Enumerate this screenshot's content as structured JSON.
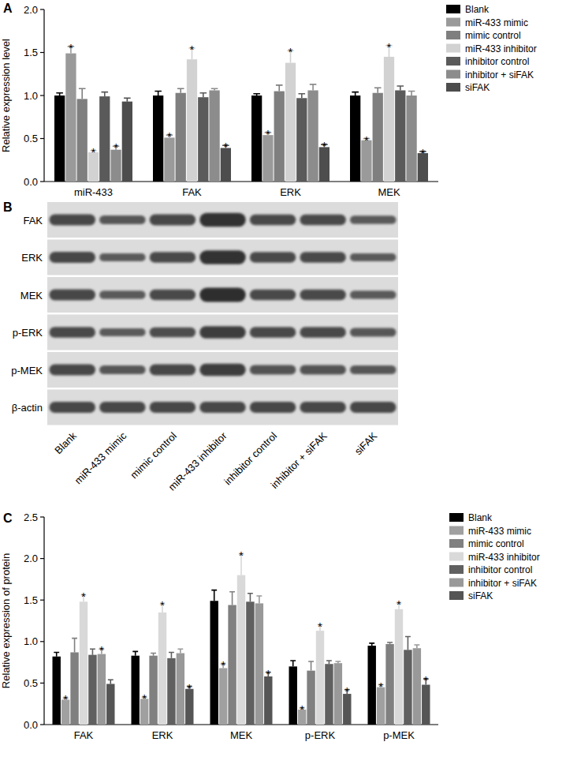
{
  "panel_labels": [
    "A",
    "B",
    "C"
  ],
  "chart_data": [
    {
      "type": "bar",
      "y_label": "Relative expression level",
      "categories": [
        "miR-433",
        "FAK",
        "ERK",
        "MEK"
      ],
      "ylim": [
        0,
        2
      ],
      "yticks": [
        {
          "value": 0,
          "label": "0.0"
        },
        {
          "value": 0.5,
          "label": "0.5"
        },
        {
          "value": 1,
          "label": "1.0"
        },
        {
          "value": 1.5,
          "label": "1.5"
        },
        {
          "value": 2,
          "label": "2.0"
        }
      ],
      "grid": false,
      "legend": "right",
      "series": [
        {
          "name": "Blank",
          "color": "#000000",
          "values": [
            1.0,
            1.0,
            1.0,
            1.0
          ],
          "errors": [
            0.03,
            0.05,
            0.02,
            0.04
          ],
          "significance": [
            null,
            null,
            null,
            null
          ]
        },
        {
          "name": "miR-433 mimic",
          "color": "#9a9a9a",
          "values": [
            1.49,
            0.51,
            0.54,
            0.48
          ],
          "errors": [
            0.08,
            0.03,
            0.03,
            0.02
          ],
          "significance": [
            "*",
            "*",
            "*",
            "*"
          ]
        },
        {
          "name": "mimic control",
          "color": "#7f7f7f",
          "values": [
            0.96,
            1.03,
            1.05,
            1.03
          ],
          "errors": [
            0.12,
            0.05,
            0.07,
            0.06
          ],
          "significance": [
            null,
            null,
            null,
            null
          ]
        },
        {
          "name": "miR-433 inhibitor",
          "color": "#d2d2d2",
          "values": [
            0.34,
            1.42,
            1.38,
            1.45
          ],
          "errors": [
            0.02,
            0.13,
            0.14,
            0.13
          ],
          "significance": [
            "*",
            "*",
            "*",
            "*"
          ]
        },
        {
          "name": "inhibitor control",
          "color": "#5a5a5a",
          "values": [
            0.99,
            0.98,
            0.97,
            1.06
          ],
          "errors": [
            0.05,
            0.05,
            0.05,
            0.05
          ],
          "significance": [
            null,
            null,
            null,
            null
          ]
        },
        {
          "name": "inhibitor + siFAK",
          "color": "#8c8c8c",
          "values": [
            0.37,
            1.06,
            1.06,
            1.0
          ],
          "errors": [
            0.04,
            0.02,
            0.07,
            0.05
          ],
          "significance": [
            "*",
            null,
            null,
            null
          ]
        },
        {
          "name": "siFAK",
          "color": "#4d4d4d",
          "values": [
            0.93,
            0.39,
            0.4,
            0.33
          ],
          "errors": [
            0.04,
            0.03,
            0.03,
            0.02
          ],
          "significance": [
            null,
            "*",
            "*",
            "*"
          ]
        }
      ]
    },
    {
      "type": "bar",
      "y_label": "Relative expression of protein",
      "categories": [
        "FAK",
        "ERK",
        "MEK",
        "p-ERK",
        "p-MEK"
      ],
      "ylim": [
        0,
        2.5
      ],
      "yticks": [
        {
          "value": 0,
          "label": "0.0"
        },
        {
          "value": 0.5,
          "label": "0.5"
        },
        {
          "value": 1,
          "label": "1.0"
        },
        {
          "value": 1.5,
          "label": "1.5"
        },
        {
          "value": 2,
          "label": "2.0"
        },
        {
          "value": 2.5,
          "label": "2.5"
        }
      ],
      "grid": false,
      "legend": "right",
      "series": [
        {
          "name": "Blank",
          "color": "#000000",
          "values": [
            0.82,
            0.83,
            1.49,
            0.7,
            0.95
          ],
          "errors": [
            0.05,
            0.05,
            0.13,
            0.07,
            0.03
          ],
          "significance": [
            null,
            null,
            null,
            null,
            null
          ]
        },
        {
          "name": "miR-433 mimic",
          "color": "#a0a0a0",
          "values": [
            0.3,
            0.31,
            0.68,
            0.18,
            0.45
          ],
          "errors": [
            0.02,
            0.02,
            0.05,
            0.02,
            0.03
          ],
          "significance": [
            "*",
            "*",
            "*",
            "*",
            "*"
          ]
        },
        {
          "name": "mimic control",
          "color": "#808080",
          "values": [
            0.87,
            0.83,
            1.44,
            0.65,
            0.97
          ],
          "errors": [
            0.17,
            0.03,
            0.16,
            0.11,
            0.02
          ],
          "significance": [
            null,
            null,
            null,
            null,
            null
          ]
        },
        {
          "name": "miR-433 inhibitor",
          "color": "#d9d9d9",
          "values": [
            1.48,
            1.35,
            1.8,
            1.13,
            1.39
          ],
          "errors": [
            0.08,
            0.1,
            0.25,
            0.07,
            0.07
          ],
          "significance": [
            "*",
            "*",
            "*",
            "*",
            "*"
          ]
        },
        {
          "name": "inhibitor control",
          "color": "#606060",
          "values": [
            0.84,
            0.8,
            1.48,
            0.73,
            0.9
          ],
          "errors": [
            0.07,
            0.07,
            0.1,
            0.04,
            0.16
          ],
          "significance": [
            null,
            null,
            null,
            null,
            null
          ]
        },
        {
          "name": "inhibitor + siFAK",
          "color": "#999999",
          "values": [
            0.85,
            0.86,
            1.46,
            0.74,
            0.92
          ],
          "errors": [
            0.06,
            0.05,
            0.09,
            0.02,
            0.04
          ],
          "significance": [
            "*",
            null,
            null,
            null,
            null
          ]
        },
        {
          "name": "siFAK",
          "color": "#555555",
          "values": [
            0.49,
            0.43,
            0.58,
            0.37,
            0.48
          ],
          "errors": [
            0.05,
            0.03,
            0.05,
            0.05,
            0.07
          ],
          "significance": [
            null,
            "*",
            "*",
            "*",
            "*"
          ]
        }
      ]
    }
  ],
  "blot": {
    "rows": [
      "FAK",
      "ERK",
      "MEK",
      "p-ERK",
      "p-MEK",
      "β-actin"
    ],
    "lanes": [
      "Blank",
      "miR-433 mimic",
      "mimic control",
      "miR-433 inhibitor",
      "inhibitor control",
      "inhibitor + siFAK",
      "siFAK"
    ]
  }
}
